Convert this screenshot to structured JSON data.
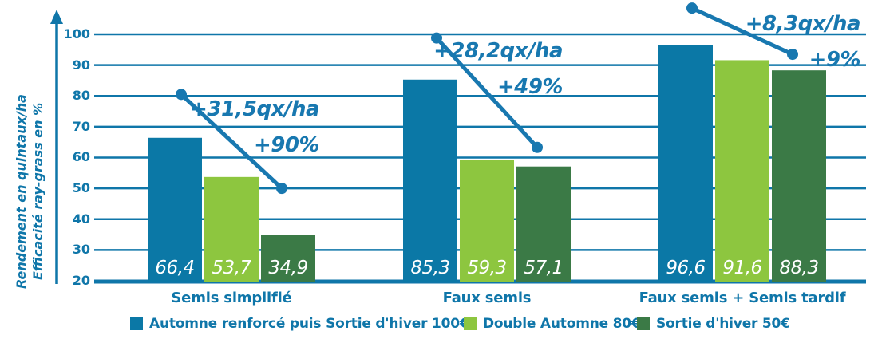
{
  "colors": {
    "bar_blue": "#0b78a6",
    "light_green": "#8dc63f",
    "dark_green": "#3b7a46",
    "axis_blue": "#0f76a9",
    "line_blue": "#1878b0",
    "value_label_white": "#ffffff"
  },
  "chart_data": {
    "type": "bar",
    "title": "",
    "ylabel_line1": "Rendement en quintaux/ha",
    "ylabel_line2": "Efficacité ray-grass en %",
    "ylim": [
      20,
      100
    ],
    "y_ticks": [
      "100",
      "90",
      "80",
      "70",
      "60",
      "50",
      "40",
      "30",
      "20"
    ],
    "grid": true,
    "legend_position": "bottom",
    "categories": [
      "Semis simplifié",
      "Faux semis",
      "Faux semis + Semis tardif"
    ],
    "series": [
      {
        "name": "Automne renforcé puis Sortie d'hiver 100€",
        "color": "#0b78a6",
        "values": [
          66.4,
          85.3,
          96.6
        ],
        "display": [
          "66,4",
          "85,3",
          "96,6"
        ]
      },
      {
        "name": "Double Automne 80€",
        "color": "#8dc63f",
        "values": [
          53.7,
          59.3,
          91.6
        ],
        "display": [
          "53,7",
          "59,3",
          "91,6"
        ]
      },
      {
        "name": "Sortie d'hiver 50€",
        "color": "#3b7a46",
        "values": [
          34.9,
          57.1,
          88.3
        ],
        "display": [
          "34,9",
          "57,1",
          "88,3"
        ]
      }
    ],
    "annotations": [
      {
        "gain": "+31,5qx/ha",
        "pct": "+90%",
        "line_from": 80.5,
        "line_to": 50.0
      },
      {
        "gain": "+28,2qx/ha",
        "pct": "+49%",
        "line_from": 98.8,
        "line_to": 63.3
      },
      {
        "gain": "+8,3qx/ha",
        "pct": "+9%",
        "line_from": 108.5,
        "line_to": 93.5
      }
    ]
  }
}
